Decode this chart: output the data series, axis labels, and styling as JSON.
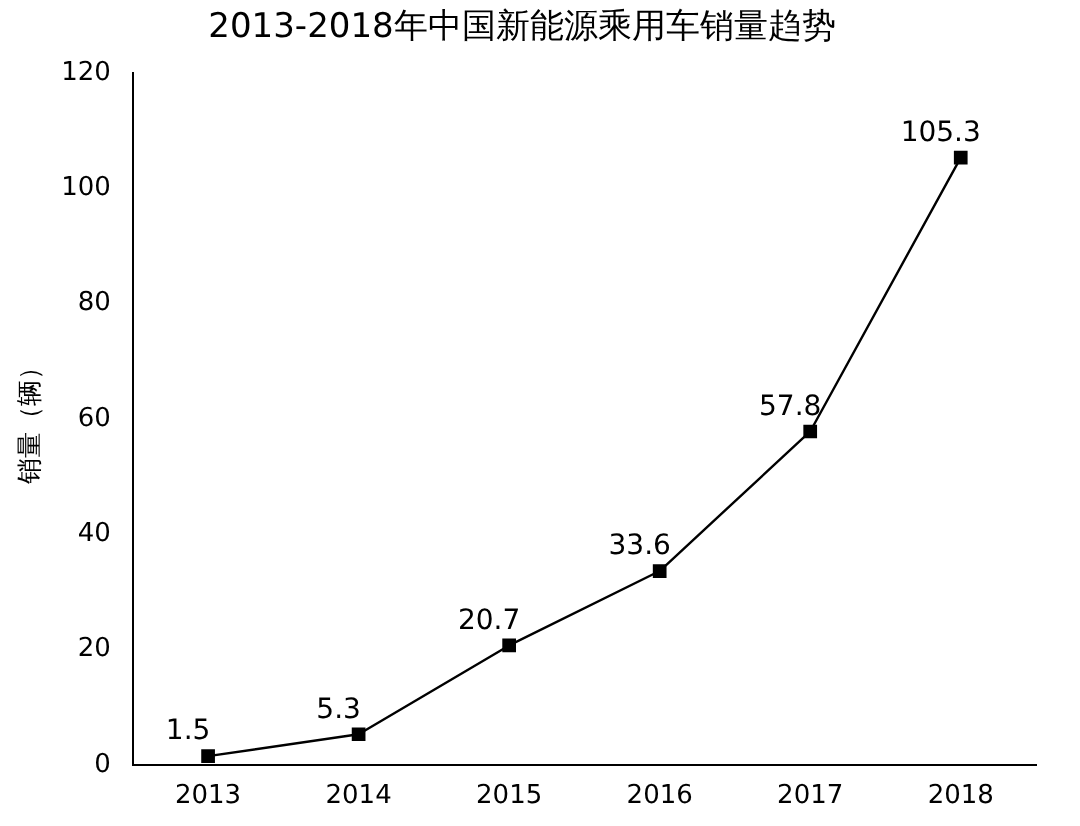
{
  "chart_data": {
    "type": "line",
    "title": "2013-2018年中国新能源乘用车销量趋势",
    "ylabel": "销量（辆）",
    "categories": [
      "2013",
      "2014",
      "2015",
      "2016",
      "2017",
      "2018"
    ],
    "series": [
      {
        "color": "#000000",
        "values": [
          1.5,
          5.3,
          20.7,
          33.6,
          57.8,
          105.3
        ]
      }
    ],
    "ylim": [
      0,
      120
    ],
    "yticks": [
      0,
      20,
      40,
      60,
      80,
      100,
      120
    ],
    "grid": false,
    "legend": false,
    "marker": "square",
    "line_style": "solid",
    "data_labels": true
  }
}
